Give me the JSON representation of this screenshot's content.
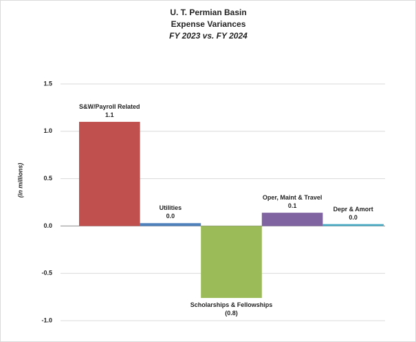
{
  "chart_data": {
    "type": "bar",
    "title": [
      "U. T. Permian Basin",
      "Expense Variances"
    ],
    "subtitle": "FY 2023 vs. FY 2024",
    "y_label": "(in  millions)",
    "categories": [
      "S&W/Payroll Related",
      "Utilities",
      "Scholarships & Fellowships",
      "Oper, Maint & Travel",
      "Depr & Amort"
    ],
    "values": [
      1.1,
      0.03,
      -0.76,
      0.14,
      0.02
    ],
    "value_labels": [
      "1.1",
      "0.0",
      "(0.8)",
      "0.1",
      "0.0"
    ],
    "colors": [
      "#c0504d",
      "#4f81bd",
      "#9bbb59",
      "#8064a2",
      "#4bacc6"
    ],
    "ylim": [
      -1.0,
      1.5
    ],
    "yticks": [
      {
        "value": -1.0,
        "label": "-1.0"
      },
      -0.5,
      {
        "value": 0.0,
        "label": "0.0"
      },
      0.5,
      {
        "value": 1.0,
        "label": "1.0"
      },
      1.5
    ],
    "grid": true
  }
}
